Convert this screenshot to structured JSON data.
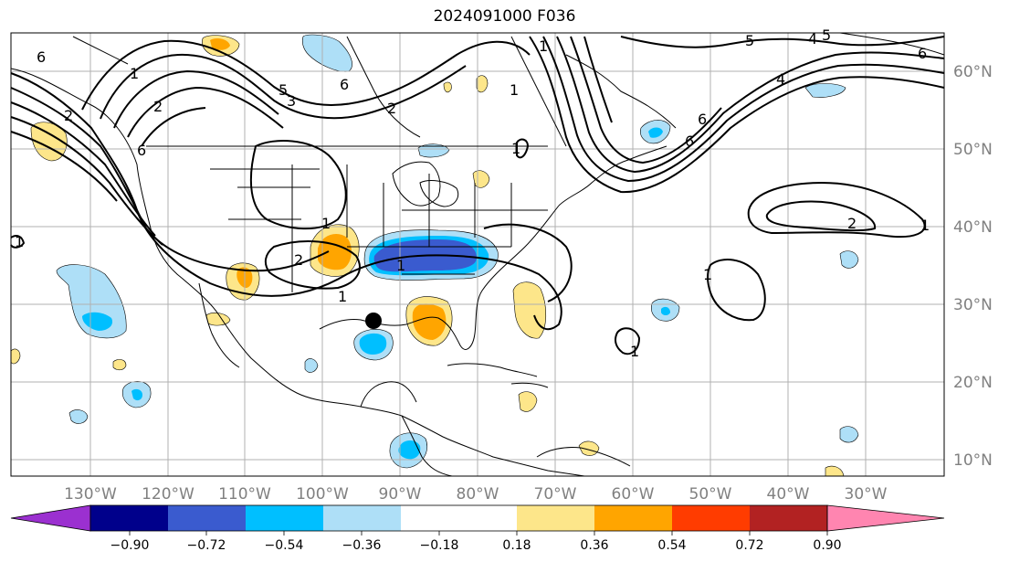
{
  "title": "2024091000 F036",
  "lon_labels": [
    "130°W",
    "120°W",
    "110°W",
    "100°W",
    "90°W",
    "80°W",
    "70°W",
    "60°W",
    "50°W",
    "40°W",
    "30°W"
  ],
  "lat_labels": [
    "60°N",
    "50°N",
    "40°N",
    "30°N",
    "20°N",
    "10°N"
  ],
  "colorbar": {
    "ticks": [
      "−0.90",
      "−0.72",
      "−0.54",
      "−0.36",
      "−0.18",
      "0.18",
      "0.36",
      "0.54",
      "0.72",
      "0.90"
    ],
    "colors": [
      "#9b30d0",
      "#00008b",
      "#3a5bcf",
      "#00bfff",
      "#aedff7",
      "#ffffff",
      "#fde68a",
      "#ffa500",
      "#ff3c00",
      "#b22222",
      "#ff85b0"
    ]
  },
  "contour_labels": [
    "6",
    "1",
    "2",
    "5",
    "6",
    "3",
    "2",
    "1",
    "2",
    "1",
    "1",
    "1",
    "2",
    "1",
    "1",
    "5",
    "4",
    "5",
    "4",
    "6",
    "6",
    "6",
    "6",
    "2",
    "1",
    "1",
    "1",
    "1"
  ],
  "colors": {
    "grid": "#b0b0b0",
    "contour": "#000000",
    "coast": "#000000"
  },
  "marker": "storm-center"
}
